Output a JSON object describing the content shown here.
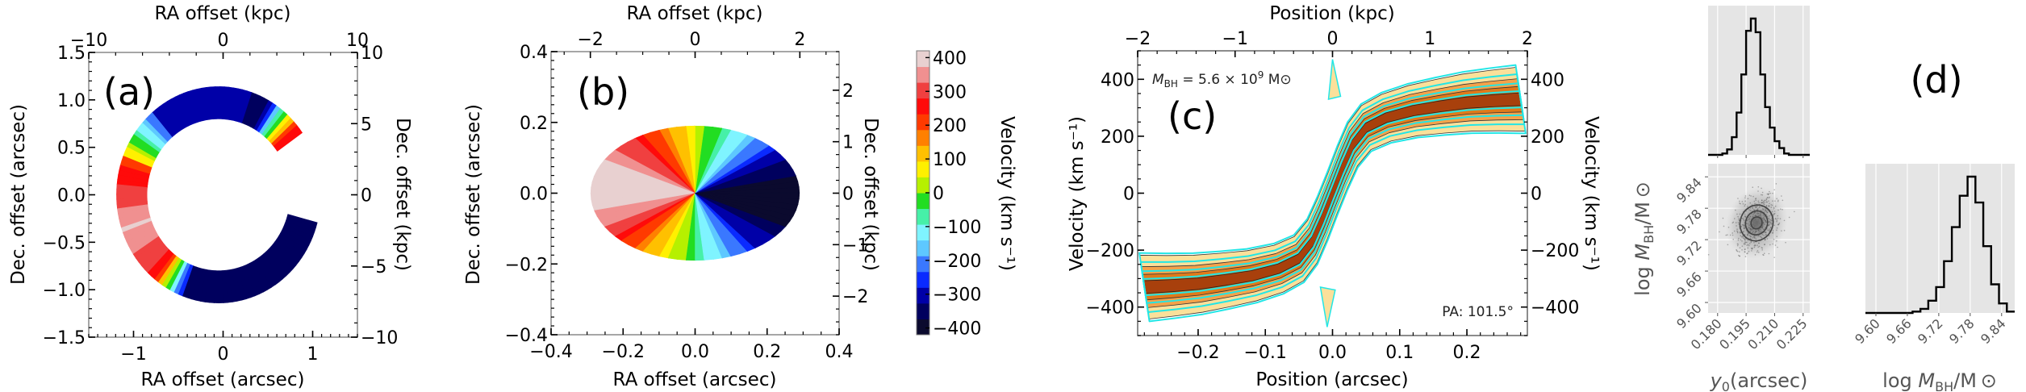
{
  "figure": {
    "panels": [
      "(a)",
      "(b)",
      "(c)",
      "(d)"
    ]
  },
  "chart_data": [
    {
      "id": "a",
      "type": "heatmap",
      "title": "",
      "panel_label": "(a)",
      "description": "Velocity map of lensed arc (C-shaped ring), colored by line-of-sight velocity",
      "xlabel": "RA offset (arcsec)",
      "ylabel": "Dec. offset (arcsec)",
      "xlabel_top": "RA offset (kpc)",
      "ylabel_right": "Dec. offset (kpc)",
      "xlim": [
        -1.5,
        1.5
      ],
      "ylim": [
        -1.5,
        1.5
      ],
      "xticks": [
        -1,
        0,
        1
      ],
      "xtick_labels": [
        "−1",
        "0",
        "1"
      ],
      "yticks": [
        -1.5,
        -1.0,
        -0.5,
        0.0,
        0.5,
        1.0,
        1.5
      ],
      "ytick_labels": [
        "−1.5",
        "−1.0",
        "−0.5",
        "0.0",
        "0.5",
        "1.0",
        "1.5"
      ],
      "top_lim": [
        -10,
        10
      ],
      "top_ticks": [
        -10,
        0,
        10
      ],
      "top_tick_labels": [
        "−10",
        "0",
        "10"
      ],
      "right_lim": [
        -10,
        10
      ],
      "right_ticks": [
        -10,
        -5,
        0,
        5,
        10
      ],
      "right_tick_labels": [
        "−10",
        "−5",
        "0",
        "5",
        "10"
      ],
      "arc": {
        "center": [
          -0.05,
          0.0
        ],
        "radius": 0.97,
        "width": 0.34,
        "start_deg": 35,
        "end_deg": 345
      }
    },
    {
      "id": "b",
      "type": "heatmap",
      "panel_label": "(b)",
      "description": "Source-plane velocity field (elliptical disk)",
      "xlabel": "RA offset (arcsec)",
      "ylabel": "Dec. offset (arcsec)",
      "xlabel_top": "RA offset (kpc)",
      "ylabel_right": "Dec. offset (kpc)",
      "xlim": [
        -0.4,
        0.4
      ],
      "ylim": [
        -0.4,
        0.4
      ],
      "xticks": [
        -0.4,
        -0.2,
        0.0,
        0.2,
        0.4
      ],
      "xtick_labels": [
        "−0.4",
        "−0.2",
        "0.0",
        "0.2",
        "0.4"
      ],
      "yticks": [
        -0.4,
        -0.2,
        0.0,
        0.2,
        0.4
      ],
      "ytick_labels": [
        "−0.4",
        "−0.2",
        "0.0",
        "0.2",
        "0.4"
      ],
      "top_lim": [
        -2.75,
        2.75
      ],
      "top_ticks": [
        -2,
        0,
        2
      ],
      "top_tick_labels": [
        "−2",
        "0",
        "2"
      ],
      "right_lim": [
        -2.75,
        2.75
      ],
      "right_ticks": [
        -2,
        -1,
        0,
        1,
        2
      ],
      "right_tick_labels": [
        "−2",
        "−1",
        "0",
        "1",
        "2"
      ],
      "disk": {
        "center": [
          0.0,
          0.0
        ],
        "semi_major": 0.29,
        "semi_minor": 0.19
      }
    },
    {
      "id": "colorbar",
      "type": "colorbar",
      "label": "Velocity (km s⁻¹)",
      "lim": [
        -420,
        420
      ],
      "ticks": [
        400,
        300,
        200,
        100,
        0,
        -100,
        -200,
        -300,
        -400
      ],
      "tick_labels": [
        "400",
        "300",
        "200",
        "100",
        "0",
        "−100",
        "−200",
        "−300",
        "−400"
      ],
      "colormap": [
        "#0b0a2e",
        "#00005e",
        "#0000a8",
        "#0a2aff",
        "#3a78ff",
        "#5ec8ff",
        "#7ff4ff",
        "#46f0a8",
        "#22dd22",
        "#b6f000",
        "#fff000",
        "#ffc000",
        "#ff8000",
        "#ff3a00",
        "#ff0a0a",
        "#f04040",
        "#f09090",
        "#e8d0d0"
      ]
    },
    {
      "id": "c",
      "type": "area",
      "panel_label": "(c)",
      "description": "Position-velocity diagram (filled orange contours = data, cyan contours = model)",
      "xlabel": "Position (arcsec)",
      "ylabel": "Velocity (km s⁻¹)",
      "xlabel_top": "Position (kpc)",
      "ylabel_right": "Velocity (km s⁻¹)",
      "xlim": [
        -0.29,
        0.29
      ],
      "ylim": [
        -500,
        500
      ],
      "xticks": [
        -0.2,
        -0.1,
        0.0,
        0.1,
        0.2
      ],
      "xtick_labels": [
        "−0.2",
        "−0.1",
        "0.0",
        "0.1",
        "0.2"
      ],
      "yticks": [
        -400,
        -200,
        0,
        200,
        400
      ],
      "ytick_labels": [
        "−400",
        "−200",
        "0",
        "200",
        "400"
      ],
      "top_lim": [
        -2,
        2
      ],
      "top_ticks": [
        -2,
        -1,
        0,
        1,
        2
      ],
      "top_tick_labels": [
        "−2",
        "−1",
        "0",
        "1",
        "2"
      ],
      "right_ticks": [
        -400,
        -200,
        0,
        200,
        400
      ],
      "right_tick_labels": [
        "−400",
        "−200",
        "0",
        "200",
        "400"
      ],
      "annotation_mass": "M_BH = 5.6 × 10⁹ M⊙",
      "annotation_mass_parts": {
        "m": "M",
        "sub": "BH",
        "rest": " = 5.6 × 10",
        "sup": "9",
        "unit": " M⊙"
      },
      "annotation_pa": "PA: 101.5°",
      "rotation_curve": {
        "x": [
          -0.28,
          -0.24,
          -0.2,
          -0.16,
          -0.12,
          -0.08,
          -0.05,
          -0.03,
          -0.015,
          0.0,
          0.015,
          0.03,
          0.05,
          0.08,
          0.12,
          0.16,
          0.2,
          0.24,
          0.28
        ],
        "v": [
          -330,
          -325,
          -318,
          -305,
          -290,
          -265,
          -230,
          -170,
          -90,
          0,
          90,
          170,
          230,
          265,
          290,
          305,
          318,
          325,
          330
        ]
      },
      "colors": {
        "fill_outer": "#fbe09a",
        "fill_mid": "#f4a24a",
        "fill_inner": "#e07a1a",
        "fill_core": "#a8400c",
        "model": "#22e6e6"
      }
    },
    {
      "id": "d",
      "type": "corner",
      "panel_label": "(d)",
      "params": [
        {
          "name": "y0",
          "label": "y₀(arcsec)",
          "label_main": "y",
          "label_sub": "0",
          "label_rest": "(arcsec)",
          "lim": [
            0.175,
            0.2285
          ],
          "ticks": [
            0.18,
            0.195,
            0.21,
            0.225
          ],
          "tick_labels": [
            "0.180",
            "0.195",
            "0.210",
            "0.225"
          ]
        },
        {
          "name": "logMBH",
          "label": "log M_BH/M⊙",
          "label_log": "log ",
          "label_main": "M",
          "label_sub": "BH",
          "label_rest": "/M ⊙",
          "lim": [
            9.58,
            9.865
          ],
          "ticks": [
            9.6,
            9.66,
            9.72,
            9.78,
            9.84
          ],
          "tick_labels": [
            "9.60",
            "9.66",
            "9.72",
            "9.78",
            "9.84"
          ]
        }
      ],
      "hist_y0": {
        "bin_edges": [
          0.175,
          0.1775,
          0.18,
          0.1825,
          0.185,
          0.1875,
          0.19,
          0.1925,
          0.195,
          0.1975,
          0.2,
          0.2025,
          0.205,
          0.2075,
          0.21,
          0.2125,
          0.215,
          0.2175,
          0.22,
          0.2225,
          0.225,
          0.2285
        ],
        "counts": [
          0.0,
          0.0,
          0.0,
          0.01,
          0.04,
          0.13,
          0.31,
          0.59,
          0.91,
          1.0,
          0.9,
          0.59,
          0.35,
          0.2,
          0.1,
          0.05,
          0.01,
          0.0,
          0.0,
          0.0,
          0.0
        ]
      },
      "hist_logMBH": {
        "bin_edges": [
          9.58,
          9.595,
          9.61,
          9.625,
          9.64,
          9.655,
          9.67,
          9.685,
          9.7,
          9.715,
          9.73,
          9.745,
          9.76,
          9.775,
          9.79,
          9.805,
          9.82,
          9.835,
          9.85,
          9.865
        ],
        "counts": [
          0.0,
          0.0,
          0.0,
          0.0,
          0.0,
          0.0,
          0.01,
          0.03,
          0.09,
          0.19,
          0.38,
          0.63,
          0.86,
          1.0,
          0.81,
          0.49,
          0.21,
          0.07,
          0.01
        ]
      },
      "scatter_2d": {
        "mean": [
          0.2005,
          9.752
        ],
        "sigma": [
          0.005,
          0.022
        ],
        "correlation": -0.25,
        "contour_levels": [
          0.5,
          1.0,
          1.5
        ]
      },
      "colors": {
        "panel_bg": "#e5e5e5",
        "grid": "#ffffff",
        "hist_line": "#000000",
        "contour": "#444444"
      }
    }
  ]
}
